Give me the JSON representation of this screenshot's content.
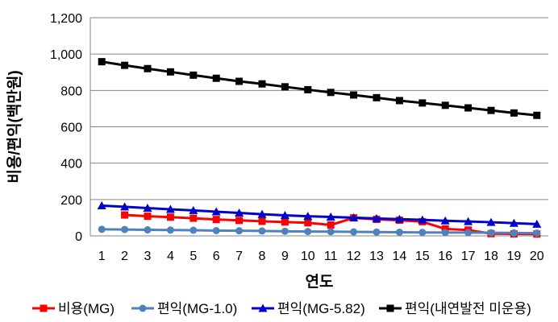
{
  "chart_data": {
    "type": "line",
    "title": "",
    "xlabel": "연도",
    "ylabel": "비용/편익(백만원)",
    "ylim": [
      0,
      1200
    ],
    "yticks": [
      0,
      200,
      400,
      600,
      800,
      1000,
      1200
    ],
    "ytick_labels": [
      "0",
      "200",
      "400",
      "600",
      "800",
      "1,000",
      "1,200"
    ],
    "x": [
      1,
      2,
      3,
      4,
      5,
      6,
      7,
      8,
      9,
      10,
      11,
      12,
      13,
      14,
      15,
      16,
      17,
      18,
      19,
      20
    ],
    "x_labels": [
      "1",
      "2",
      "3",
      "4",
      "5",
      "6",
      "7",
      "8",
      "9",
      "10",
      "11",
      "12",
      "13",
      "14",
      "15",
      "16",
      "17",
      "18",
      "19",
      "20"
    ],
    "grid": "horizontal",
    "legend_position": "bottom",
    "series": [
      {
        "name": "비용(MG)",
        "color": "#ff0000",
        "marker": "square",
        "values": [
          null,
          115,
          108,
          103,
          97,
          90,
          85,
          80,
          76,
          72,
          60,
          99,
          91,
          86,
          78,
          38,
          32,
          12,
          11,
          10
        ]
      },
      {
        "name": "편익(MG-1.0)",
        "color": "#4f81bd",
        "marker": "circle",
        "values": [
          36,
          35,
          33,
          32,
          31,
          29,
          28,
          27,
          25,
          24,
          23,
          22,
          21,
          20,
          19,
          18,
          18,
          17,
          16,
          15
        ]
      },
      {
        "name": "편익(MG-5.82)",
        "color": "#0000cc",
        "marker": "triangle",
        "values": [
          166,
          160,
          153,
          146,
          140,
          133,
          126,
          119,
          113,
          108,
          104,
          100,
          96,
          92,
          88,
          83,
          79,
          75,
          70,
          65
        ]
      },
      {
        "name": "편익(내연발전 미운용)",
        "color": "#000000",
        "marker": "square",
        "values": [
          958,
          938,
          920,
          902,
          884,
          867,
          850,
          836,
          820,
          804,
          789,
          775,
          760,
          744,
          731,
          718,
          704,
          690,
          676,
          663
        ]
      }
    ]
  }
}
